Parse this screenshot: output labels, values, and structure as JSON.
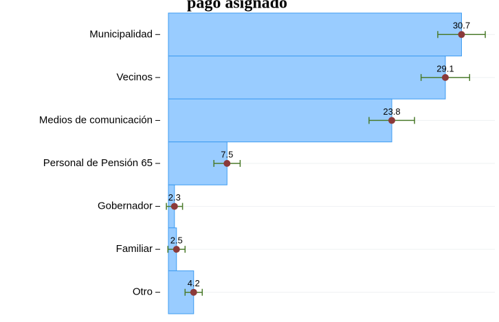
{
  "chart_data": {
    "type": "hbar_errorbar",
    "title": "pago asignado",
    "categories": [
      "Municipalidad",
      "Vecinos",
      "Medios de comunicación",
      "Personal de Pensión 65",
      "Gobernador",
      "Familiar",
      "Otro"
    ],
    "values": [
      30.7,
      29.1,
      23.8,
      7.5,
      2.3,
      2.5,
      4.2
    ],
    "errors": [
      2.35,
      2.4,
      2.25,
      1.3,
      0.8,
      0.85,
      0.85
    ],
    "color": "#99ccff",
    "point_color": "#8b3a3a",
    "error_color": "#4a7a2a",
    "xlim": [
      1.7,
      34
    ],
    "grid": true
  }
}
